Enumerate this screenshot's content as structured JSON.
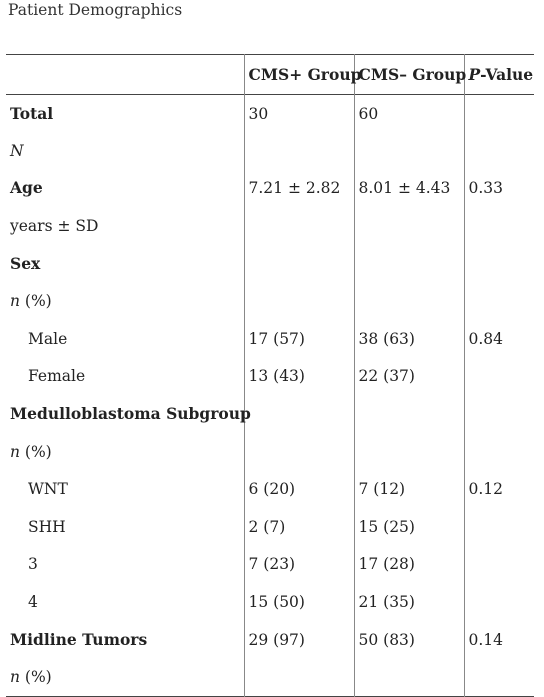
{
  "caption": "Patient Demographics",
  "header": {
    "col1": "",
    "col2": "CMS+ Group",
    "col3": "CMS– Group",
    "col4_italic": "P",
    "col4_rest": "-Value"
  },
  "rows": [
    {
      "label": "Total",
      "c2": "30",
      "c3": "60",
      "c4": ""
    },
    {
      "unit_italic": "N",
      "unit_rest": "",
      "c2": "",
      "c3": "",
      "c4": ""
    },
    {
      "label": "Age",
      "c2": "7.21 ± 2.82",
      "c3": "8.01 ± 4.43",
      "c4": "0.33"
    },
    {
      "unit_italic": "",
      "unit_rest": "years ± SD",
      "c2": "",
      "c3": "",
      "c4": ""
    },
    {
      "label": "Sex",
      "c2": "",
      "c3": "",
      "c4": ""
    },
    {
      "unit_italic": "n",
      "unit_rest": " (%)",
      "c2": "",
      "c3": "",
      "c4": ""
    },
    {
      "sub": "Male",
      "c2": "17 (57)",
      "c3": "38 (63)",
      "c4": "0.84"
    },
    {
      "sub": "Female",
      "c2": "13 (43)",
      "c3": "22 (37)",
      "c4": ""
    },
    {
      "label": "Medulloblastoma Subgroup",
      "c2": "",
      "c3": "",
      "c4": ""
    },
    {
      "unit_italic": "n",
      "unit_rest": " (%)",
      "c2": "",
      "c3": "",
      "c4": ""
    },
    {
      "sub": "WNT",
      "c2": "6 (20)",
      "c3": "7 (12)",
      "c4": "0.12"
    },
    {
      "sub": "SHH",
      "c2": "2 (7)",
      "c3": "15 (25)",
      "c4": ""
    },
    {
      "sub": "3",
      "c2": "7 (23)",
      "c3": "17 (28)",
      "c4": ""
    },
    {
      "sub": "4",
      "c2": "15 (50)",
      "c3": "21 (35)",
      "c4": ""
    },
    {
      "label": "Midline Tumors",
      "c2": "29 (97)",
      "c3": "50 (83)",
      "c4": "0.14"
    },
    {
      "unit_italic": "n",
      "unit_rest": " (%)",
      "c2": "",
      "c3": "",
      "c4": ""
    }
  ]
}
